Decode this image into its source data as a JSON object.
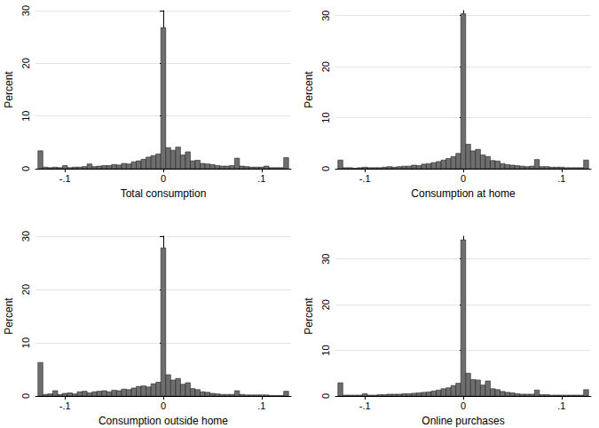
{
  "chart_data": [
    {
      "type": "histogram",
      "x_label": "Total consumption",
      "y_label": "Percent",
      "color": "#6e6e6e",
      "grid": true,
      "bins": [
        -0.1275,
        -0.1225,
        -0.1175,
        -0.1125,
        -0.1075,
        -0.1025,
        -0.0975,
        -0.0925,
        -0.0875,
        -0.0825,
        -0.0775,
        -0.0725,
        -0.0675,
        -0.0625,
        -0.0575,
        -0.0525,
        -0.0475,
        -0.0425,
        -0.0375,
        -0.0325,
        -0.0275,
        -0.0225,
        -0.0175,
        -0.0125,
        -0.0075,
        -0.0025,
        0.0025,
        0.0075,
        0.0125,
        0.0175,
        0.0225,
        0.0275,
        0.0325,
        0.0375,
        0.0425,
        0.0475,
        0.0525,
        0.0575,
        0.0625,
        0.0675,
        0.0725,
        0.0775,
        0.0825,
        0.0875,
        0.0925,
        0.0975,
        0.1025,
        0.1075,
        0.1125,
        0.1175,
        0.1225,
        0.1275
      ],
      "values": [
        3.4,
        0.3,
        0.2,
        0.3,
        0.2,
        0.6,
        0.2,
        0.3,
        0.3,
        0.4,
        0.9,
        0.4,
        0.5,
        0.6,
        0.6,
        0.8,
        0.7,
        1.0,
        0.9,
        1.3,
        1.5,
        1.8,
        2.2,
        2.5,
        2.8,
        26.8,
        4.0,
        3.5,
        4.1,
        2.6,
        3.2,
        1.5,
        1.6,
        1.0,
        0.9,
        0.8,
        0.6,
        0.5,
        0.5,
        0.6,
        2.0,
        0.5,
        0.4,
        0.3,
        0.3,
        0.3,
        0.5,
        0.2,
        0.2,
        0.2,
        2.1
      ],
      "xlim": [
        -0.13,
        0.13
      ],
      "xticks": [
        {
          "value": -0.1,
          "label": "-.1"
        },
        0,
        {
          "value": 0.1,
          "label": ".1"
        }
      ],
      "ylim": [
        0,
        30
      ],
      "yticks": [
        0,
        10,
        20,
        30
      ]
    },
    {
      "type": "histogram",
      "x_label": "Consumption at home",
      "y_label": "Percent",
      "color": "#6e6e6e",
      "grid": true,
      "bins": [
        -0.1275,
        -0.1225,
        -0.1175,
        -0.1125,
        -0.1075,
        -0.1025,
        -0.0975,
        -0.0925,
        -0.0875,
        -0.0825,
        -0.0775,
        -0.0725,
        -0.0675,
        -0.0625,
        -0.0575,
        -0.0525,
        -0.0475,
        -0.0425,
        -0.0375,
        -0.0325,
        -0.0275,
        -0.0225,
        -0.0175,
        -0.0125,
        -0.0075,
        -0.0025,
        0.0025,
        0.0075,
        0.0125,
        0.0175,
        0.0225,
        0.0275,
        0.0325,
        0.0375,
        0.0425,
        0.0475,
        0.0525,
        0.0575,
        0.0625,
        0.0675,
        0.0725,
        0.0775,
        0.0825,
        0.0875,
        0.0925,
        0.0975,
        0.1025,
        0.1075,
        0.1125,
        0.1175,
        0.1225,
        0.1275
      ],
      "values": [
        1.7,
        0.2,
        0.2,
        0.1,
        0.2,
        0.3,
        0.2,
        0.2,
        0.2,
        0.3,
        0.4,
        0.3,
        0.4,
        0.5,
        0.5,
        0.7,
        0.6,
        0.9,
        1.0,
        1.2,
        1.4,
        1.7,
        2.0,
        2.4,
        3.0,
        30.4,
        4.8,
        3.5,
        3.8,
        2.7,
        2.4,
        1.6,
        1.5,
        1.0,
        0.8,
        0.7,
        0.6,
        0.5,
        0.4,
        0.5,
        1.8,
        0.4,
        0.4,
        0.3,
        0.3,
        0.3,
        0.2,
        0.2,
        0.2,
        0.2,
        1.7
      ],
      "xlim": [
        -0.13,
        0.13
      ],
      "xticks": [
        {
          "value": -0.1,
          "label": "-.1"
        },
        0,
        {
          "value": 0.1,
          "label": ".1"
        }
      ],
      "ylim": [
        0,
        31
      ],
      "yticks": [
        0,
        10,
        20,
        30
      ]
    },
    {
      "type": "histogram",
      "x_label": "Consumption outside home",
      "y_label": "Percent",
      "color": "#6e6e6e",
      "grid": true,
      "bins": [
        -0.1275,
        -0.1225,
        -0.1175,
        -0.1125,
        -0.1075,
        -0.1025,
        -0.0975,
        -0.0925,
        -0.0875,
        -0.0825,
        -0.0775,
        -0.0725,
        -0.0675,
        -0.0625,
        -0.0575,
        -0.0525,
        -0.0475,
        -0.0425,
        -0.0375,
        -0.0325,
        -0.0275,
        -0.0225,
        -0.0175,
        -0.0125,
        -0.0075,
        -0.0025,
        0.0025,
        0.0075,
        0.0125,
        0.0175,
        0.0225,
        0.0275,
        0.0325,
        0.0375,
        0.0425,
        0.0475,
        0.0525,
        0.0575,
        0.0625,
        0.0675,
        0.0725,
        0.0775,
        0.0825,
        0.0875,
        0.0925,
        0.0975,
        0.1025,
        0.1075,
        0.1125,
        0.1175,
        0.1225,
        0.1275
      ],
      "values": [
        6.3,
        0.3,
        0.4,
        1.0,
        0.3,
        0.5,
        0.6,
        0.4,
        0.8,
        0.9,
        0.6,
        0.8,
        0.9,
        1.0,
        0.8,
        1.1,
        1.0,
        1.3,
        1.2,
        1.5,
        1.8,
        1.9,
        1.7,
        2.3,
        2.6,
        27.8,
        4.0,
        3.0,
        3.3,
        2.2,
        2.5,
        1.4,
        1.2,
        0.8,
        0.7,
        0.5,
        0.4,
        0.3,
        0.3,
        0.3,
        1.0,
        0.3,
        0.2,
        0.2,
        0.2,
        0.2,
        0.2,
        0.1,
        0.1,
        0.1,
        0.9
      ],
      "xlim": [
        -0.13,
        0.13
      ],
      "xticks": [
        {
          "value": -0.1,
          "label": "-.1"
        },
        0,
        {
          "value": 0.1,
          "label": ".1"
        }
      ],
      "ylim": [
        0,
        30
      ],
      "yticks": [
        0,
        10,
        20,
        30
      ]
    },
    {
      "type": "histogram",
      "x_label": "Online purchases",
      "y_label": "Percent",
      "color": "#6e6e6e",
      "grid": true,
      "bins": [
        -0.1275,
        -0.1225,
        -0.1175,
        -0.1125,
        -0.1075,
        -0.1025,
        -0.0975,
        -0.0925,
        -0.0875,
        -0.0825,
        -0.0775,
        -0.0725,
        -0.0675,
        -0.0625,
        -0.0575,
        -0.0525,
        -0.0475,
        -0.0425,
        -0.0375,
        -0.0325,
        -0.0275,
        -0.0225,
        -0.0175,
        -0.0125,
        -0.0075,
        -0.0025,
        0.0025,
        0.0075,
        0.0125,
        0.0175,
        0.0225,
        0.0275,
        0.0325,
        0.0375,
        0.0425,
        0.0475,
        0.0525,
        0.0575,
        0.0625,
        0.0675,
        0.0725,
        0.0775,
        0.0825,
        0.0875,
        0.0925,
        0.0975,
        0.1025,
        0.1075,
        0.1125,
        0.1175,
        0.1225,
        0.1275
      ],
      "values": [
        2.9,
        0.2,
        0.2,
        0.2,
        0.2,
        0.5,
        0.2,
        0.2,
        0.3,
        0.3,
        0.4,
        0.4,
        0.4,
        0.5,
        0.5,
        0.6,
        0.7,
        0.8,
        0.9,
        1.1,
        1.3,
        1.6,
        1.8,
        2.3,
        2.8,
        34.2,
        5.0,
        3.6,
        3.5,
        2.4,
        3.3,
        1.6,
        1.4,
        1.0,
        0.8,
        0.7,
        0.5,
        0.4,
        0.4,
        0.4,
        1.3,
        0.3,
        0.3,
        0.2,
        0.2,
        0.2,
        0.2,
        0.2,
        0.2,
        0.2,
        1.4
      ],
      "xlim": [
        -0.13,
        0.13
      ],
      "xticks": [
        {
          "value": -0.1,
          "label": "-.1"
        },
        0,
        {
          "value": 0.1,
          "label": ".1"
        }
      ],
      "ylim": [
        0,
        35
      ],
      "yticks": [
        0,
        10,
        20,
        30
      ]
    }
  ]
}
